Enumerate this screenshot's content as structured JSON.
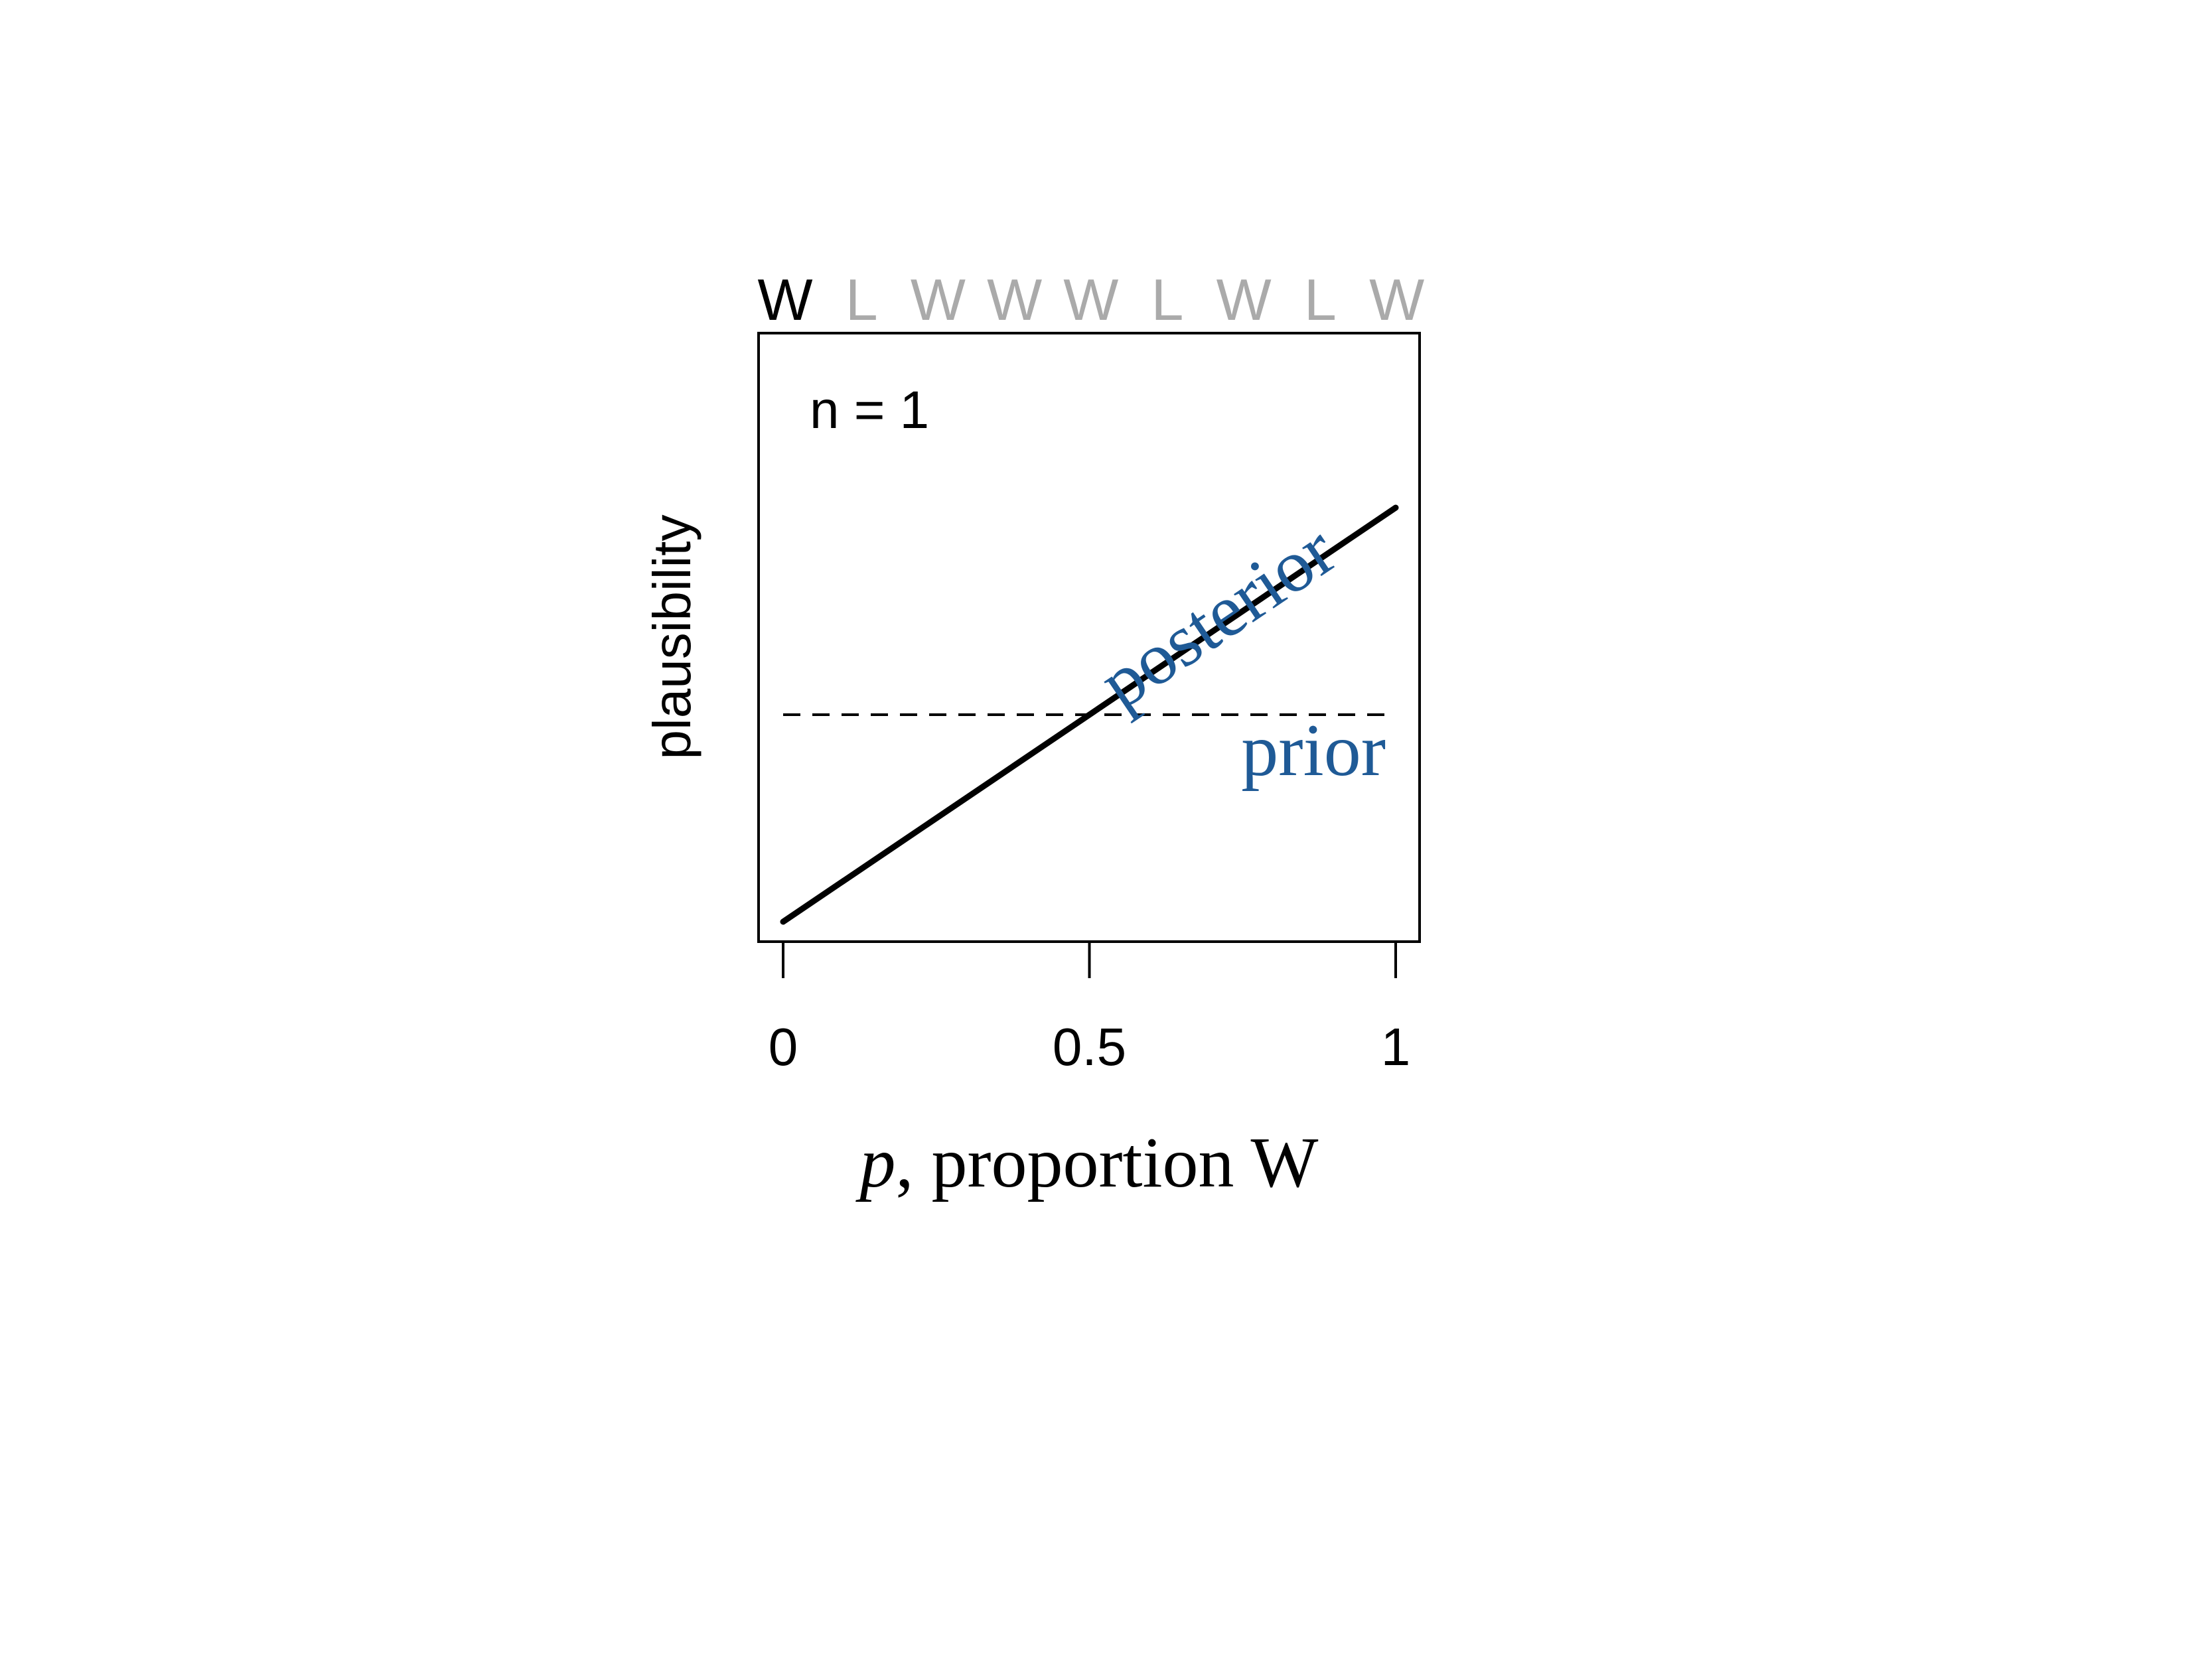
{
  "chart_data": {
    "type": "line",
    "sequence": [
      {
        "label": "W",
        "observed": true
      },
      {
        "label": "L",
        "observed": false
      },
      {
        "label": "W",
        "observed": false
      },
      {
        "label": "W",
        "observed": false
      },
      {
        "label": "W",
        "observed": false
      },
      {
        "label": "L",
        "observed": false
      },
      {
        "label": "W",
        "observed": false
      },
      {
        "label": "L",
        "observed": false
      },
      {
        "label": "W",
        "observed": false
      }
    ],
    "annotation": "n = 1",
    "xlabel_italic": "p",
    "xlabel_rest": ", proportion W",
    "ylabel": "plausibility",
    "xlim": [
      0,
      1
    ],
    "ylim": [
      0,
      2.1
    ],
    "x_ticks": [
      {
        "value": 0,
        "label": "0"
      },
      {
        "value": 0.5,
        "label": "0.5"
      },
      {
        "value": 1,
        "label": "1"
      }
    ],
    "series": [
      {
        "name": "posterior",
        "style": "solid",
        "x": [
          0,
          1
        ],
        "y": [
          0,
          2
        ]
      },
      {
        "name": "prior",
        "style": "dashed",
        "x": [
          0,
          1
        ],
        "y": [
          1,
          1
        ]
      }
    ],
    "colors": {
      "observed": "#000000",
      "unobserved": "#aaaaaa",
      "label": "#1f5a96",
      "line": "#000000"
    },
    "grid": false,
    "legend": "none"
  }
}
